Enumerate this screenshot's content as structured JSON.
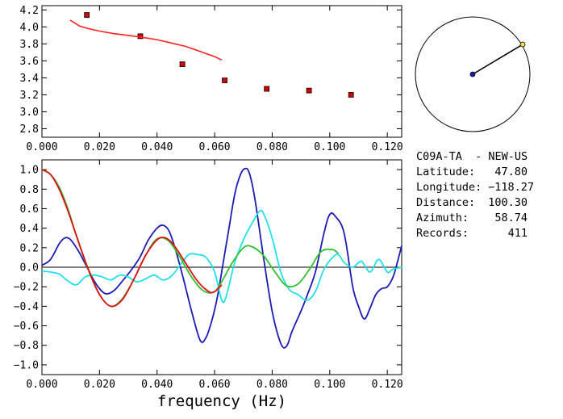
{
  "chart_data": [
    {
      "type": "scatter",
      "title": "",
      "xlabel": "",
      "ylabel": "",
      "xlim": [
        0.0,
        0.125
      ],
      "ylim": [
        2.7,
        4.25
      ],
      "xticks": [
        "0.000",
        "0.020",
        "0.040",
        "0.060",
        "0.080",
        "0.100",
        "0.120"
      ],
      "yticks": [
        "2.8",
        "3.0",
        "3.2",
        "3.4",
        "3.6",
        "3.8",
        "4.0",
        "4.2"
      ],
      "series": [
        {
          "type": "scatter",
          "color": "#d40000",
          "x": [
            0.0156,
            0.0342,
            0.0488,
            0.0635,
            0.0781,
            0.0928,
            0.1074
          ],
          "y": [
            4.14,
            3.89,
            3.56,
            3.37,
            3.27,
            3.25,
            3.2
          ]
        },
        {
          "type": "line",
          "color": "#ff2020",
          "x": [
            0.0098,
            0.013,
            0.016,
            0.02,
            0.025,
            0.03,
            0.0342,
            0.04,
            0.045,
            0.05,
            0.055,
            0.06,
            0.0625
          ],
          "y": [
            4.08,
            4.01,
            3.98,
            3.95,
            3.92,
            3.9,
            3.88,
            3.85,
            3.81,
            3.77,
            3.71,
            3.65,
            3.61
          ]
        }
      ]
    },
    {
      "type": "line",
      "title": "",
      "xlabel": "frequency (Hz)",
      "ylabel": "",
      "xlim": [
        0.0,
        0.125
      ],
      "ylim": [
        -1.1,
        1.1
      ],
      "xticks": [
        "0.000",
        "0.020",
        "0.040",
        "0.060",
        "0.080",
        "0.100",
        "0.120"
      ],
      "yticks": [
        "1.0",
        "0.8",
        "0.6",
        "0.4",
        "0.2",
        "0.0",
        "−0.2",
        "−0.4",
        "−0.6",
        "−0.8",
        "−1.0"
      ],
      "series": [
        {
          "color": "#1c1cb4",
          "x": [
            0.0,
            0.003,
            0.006,
            0.008,
            0.01,
            0.013,
            0.016,
            0.019,
            0.022,
            0.025,
            0.028,
            0.031,
            0.034,
            0.037,
            0.04,
            0.042,
            0.044,
            0.046,
            0.049,
            0.052,
            0.055,
            0.057,
            0.059,
            0.061,
            0.063,
            0.065,
            0.067,
            0.069,
            0.0705,
            0.072,
            0.074,
            0.077,
            0.08,
            0.083,
            0.085,
            0.087,
            0.09,
            0.092,
            0.095,
            0.098,
            0.1,
            0.102,
            0.105,
            0.108,
            0.11,
            0.112,
            0.114,
            0.116,
            0.118,
            0.12,
            0.122,
            0.1235,
            0.125
          ],
          "y": [
            0.02,
            0.08,
            0.24,
            0.3,
            0.28,
            0.15,
            -0.02,
            -0.18,
            -0.27,
            -0.24,
            -0.14,
            -0.03,
            0.1,
            0.28,
            0.4,
            0.43,
            0.38,
            0.22,
            -0.1,
            -0.45,
            -0.75,
            -0.72,
            -0.55,
            -0.3,
            0.05,
            0.4,
            0.75,
            0.95,
            1.01,
            0.97,
            0.7,
            0.1,
            -0.45,
            -0.78,
            -0.81,
            -0.65,
            -0.45,
            -0.3,
            -0.05,
            0.35,
            0.54,
            0.52,
            0.35,
            -0.2,
            -0.4,
            -0.53,
            -0.42,
            -0.28,
            -0.22,
            -0.2,
            -0.1,
            0.05,
            0.22
          ]
        },
        {
          "color": "#20e0e8",
          "x": [
            0.0,
            0.003,
            0.006,
            0.009,
            0.012,
            0.015,
            0.018,
            0.021,
            0.024,
            0.027,
            0.03,
            0.033,
            0.036,
            0.039,
            0.042,
            0.045,
            0.048,
            0.051,
            0.054,
            0.057,
            0.06,
            0.0625,
            0.064,
            0.067,
            0.07,
            0.073,
            0.0755,
            0.077,
            0.08,
            0.083,
            0.086,
            0.089,
            0.092,
            0.095,
            0.098,
            0.101,
            0.103,
            0.105,
            0.108,
            0.111,
            0.114,
            0.117,
            0.12,
            0.122,
            0.125
          ],
          "y": [
            -0.04,
            -0.05,
            -0.07,
            -0.14,
            -0.18,
            -0.1,
            -0.08,
            -0.1,
            -0.13,
            -0.08,
            -0.1,
            -0.15,
            -0.12,
            -0.08,
            -0.13,
            -0.09,
            0.02,
            0.13,
            0.13,
            0.1,
            -0.05,
            -0.34,
            -0.3,
            0.05,
            0.28,
            0.45,
            0.57,
            0.55,
            0.3,
            -0.05,
            -0.23,
            -0.28,
            -0.34,
            -0.25,
            -0.02,
            0.1,
            0.13,
            0.05,
            0.0,
            0.06,
            -0.05,
            0.08,
            -0.05,
            -0.02,
            0.0
          ]
        },
        {
          "color": "#30c030",
          "x": [
            0.0,
            0.003,
            0.006,
            0.009,
            0.012,
            0.016,
            0.02,
            0.024,
            0.028,
            0.032,
            0.036,
            0.04,
            0.044,
            0.048,
            0.052,
            0.056,
            0.06,
            0.063,
            0.066,
            0.07,
            0.073,
            0.077,
            0.081,
            0.085,
            0.089,
            0.093,
            0.097,
            0.101,
            0.103
          ],
          "y": [
            1.0,
            0.95,
            0.82,
            0.6,
            0.32,
            -0.02,
            -0.28,
            -0.4,
            -0.32,
            -0.12,
            0.12,
            0.29,
            0.27,
            0.1,
            -0.1,
            -0.24,
            -0.25,
            -0.12,
            0.04,
            0.2,
            0.21,
            0.12,
            -0.05,
            -0.19,
            -0.17,
            -0.02,
            0.16,
            0.18,
            0.14
          ]
        },
        {
          "color": "#e01010",
          "x": [
            0.0,
            0.003,
            0.006,
            0.009,
            0.012,
            0.016,
            0.02,
            0.024,
            0.028,
            0.032,
            0.036,
            0.04,
            0.043,
            0.046,
            0.05,
            0.054,
            0.058,
            0.06,
            0.0625
          ],
          "y": [
            1.0,
            0.95,
            0.8,
            0.58,
            0.32,
            -0.01,
            -0.28,
            -0.4,
            -0.33,
            -0.12,
            0.12,
            0.28,
            0.3,
            0.22,
            0.04,
            -0.14,
            -0.25,
            -0.25,
            -0.18
          ]
        }
      ]
    }
  ],
  "globe": {
    "station_dot_color": "#1c1cb4",
    "event_dot_color": "#f0e050"
  },
  "info": {
    "station": "C09A-TA  - NEW-US",
    "rows": [
      {
        "label": "Latitude:",
        "value": "47.80"
      },
      {
        "label": "Longitude:",
        "value": "−118.27"
      },
      {
        "label": "Distance:",
        "value": "100.30"
      },
      {
        "label": "Azimuth:",
        "value": "58.74"
      },
      {
        "label": "Records:",
        "value": "411"
      }
    ]
  }
}
